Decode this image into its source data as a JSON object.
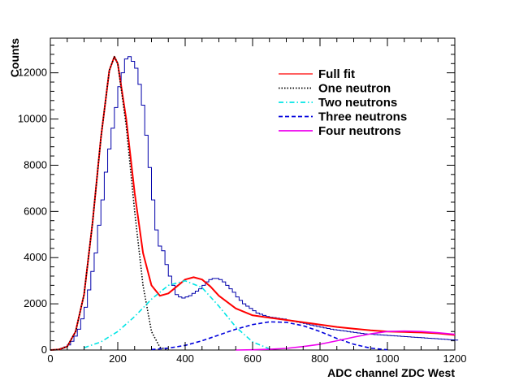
{
  "chart_data": {
    "type": "line",
    "title": "",
    "xlabel": "ADC channel ZDC West",
    "ylabel": "Counts",
    "xlim": [
      0,
      1200
    ],
    "ylim": [
      0,
      13500
    ],
    "x_ticks": [
      0,
      200,
      400,
      600,
      800,
      1000,
      1200
    ],
    "y_ticks": [
      0,
      2000,
      4000,
      6000,
      8000,
      10000,
      12000
    ],
    "x_tick_labels": [
      "0",
      "200",
      "400",
      "600",
      "800",
      "1000",
      "1200"
    ],
    "y_tick_labels": [
      "0",
      "2000",
      "4000",
      "6000",
      "8000",
      "10000",
      "12000"
    ],
    "histogram": {
      "name": "Data",
      "bin_width": 10,
      "x_start": 0,
      "values": [
        0,
        10,
        30,
        70,
        130,
        220,
        380,
        600,
        900,
        1350,
        1850,
        2600,
        3400,
        4200,
        5400,
        6500,
        7700,
        8700,
        9600,
        10500,
        11400,
        12000,
        12600,
        12700,
        12500,
        12200,
        11500,
        10600,
        9300,
        7900,
        6500,
        5200,
        4500,
        4300,
        3700,
        3200,
        2800,
        2400,
        2300,
        2250,
        2300,
        2350,
        2450,
        2550,
        2650,
        2800,
        2950,
        3050,
        3100,
        3100,
        3050,
        2950,
        2800,
        2650,
        2500,
        2300,
        2150,
        2000,
        1900,
        1800,
        1700,
        1600,
        1550,
        1500,
        1450,
        1420,
        1400,
        1380,
        1360,
        1340,
        1300,
        1270,
        1240,
        1210,
        1180,
        1150,
        1120,
        1080,
        1050,
        1020,
        990,
        960,
        930,
        900,
        880,
        860,
        840,
        820,
        800,
        780,
        760,
        740,
        720,
        700,
        690,
        680,
        670,
        660,
        650,
        640,
        630,
        620,
        610,
        600,
        590,
        580,
        570,
        560,
        550,
        540,
        530,
        520,
        510,
        500,
        490,
        480,
        470,
        460,
        450,
        440,
        430
      ]
    },
    "series": [
      {
        "name": "Full fit",
        "color": "#ff0000",
        "style": "solid",
        "x": [
          0,
          25,
          50,
          75,
          100,
          125,
          150,
          175,
          190,
          200,
          225,
          250,
          275,
          300,
          325,
          350,
          375,
          400,
          425,
          450,
          475,
          500,
          550,
          600,
          650,
          700,
          750,
          800,
          850,
          900,
          950,
          1000,
          1050,
          1100,
          1150,
          1200
        ],
        "y": [
          0,
          20,
          150,
          800,
          2400,
          5500,
          9200,
          12100,
          12700,
          12400,
          10000,
          6800,
          4200,
          2800,
          2350,
          2450,
          2750,
          3050,
          3150,
          3050,
          2750,
          2350,
          1800,
          1500,
          1400,
          1300,
          1200,
          1100,
          1000,
          920,
          850,
          800,
          780,
          760,
          720,
          650
        ]
      },
      {
        "name": "One neutron",
        "color": "#000000",
        "style": "dotted",
        "x": [
          0,
          25,
          50,
          75,
          100,
          125,
          150,
          175,
          190,
          200,
          225,
          250,
          275,
          300,
          325,
          350
        ],
        "y": [
          0,
          20,
          150,
          800,
          2400,
          5500,
          9200,
          12100,
          12700,
          12400,
          9700,
          6000,
          2800,
          800,
          120,
          0
        ]
      },
      {
        "name": "Two neutrons",
        "color": "#00e5e5",
        "style": "dashdot",
        "x": [
          100,
          150,
          200,
          250,
          300,
          350,
          400,
          450,
          500,
          550,
          600,
          650
        ],
        "y": [
          100,
          350,
          800,
          1450,
          2200,
          2800,
          3000,
          2700,
          1900,
          1000,
          350,
          50
        ]
      },
      {
        "name": "Three neutrons",
        "color": "#0000dd",
        "style": "dashed",
        "x": [
          300,
          350,
          400,
          450,
          500,
          550,
          600,
          650,
          700,
          750,
          800,
          850,
          900,
          950,
          1000
        ],
        "y": [
          20,
          80,
          200,
          400,
          650,
          900,
          1100,
          1220,
          1200,
          1050,
          800,
          500,
          250,
          80,
          10
        ]
      },
      {
        "name": "Four neutrons",
        "color": "#ee00ee",
        "style": "solid",
        "x": [
          550,
          600,
          650,
          700,
          750,
          800,
          850,
          900,
          950,
          1000,
          1050,
          1100,
          1150,
          1200
        ],
        "y": [
          0,
          10,
          30,
          70,
          150,
          250,
          400,
          560,
          700,
          800,
          820,
          800,
          750,
          680
        ]
      }
    ],
    "legend": {
      "position": "top-right",
      "entries": [
        "Full fit",
        "One neutron",
        "Two neutrons",
        "Three neutrons",
        "Four neutrons"
      ]
    },
    "histogram_color": "#0000aa",
    "grid": false
  }
}
